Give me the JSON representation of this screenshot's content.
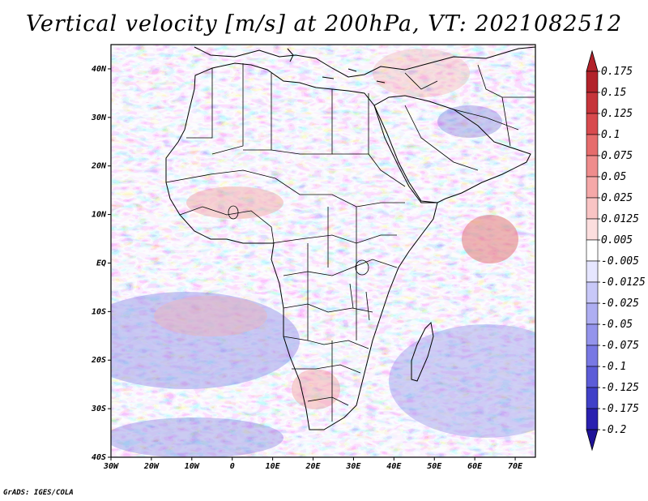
{
  "title": "Vertical velocity [m/s] at 200hPa, VT: 2021082512",
  "footer": "GrADS: IGES/COLA",
  "chart_data": {
    "type": "heatmap",
    "variable": "Vertical velocity",
    "units": "m/s",
    "level": "200hPa",
    "valid_time": "2021082512",
    "lon_range": [
      -30,
      75
    ],
    "lat_range": [
      -40,
      45
    ],
    "x_ticks": [
      {
        "value": -30,
        "label": "30W"
      },
      {
        "value": -20,
        "label": "20W"
      },
      {
        "value": -10,
        "label": "10W"
      },
      {
        "value": 0,
        "label": "0"
      },
      {
        "value": 10,
        "label": "10E"
      },
      {
        "value": 20,
        "label": "20E"
      },
      {
        "value": 30,
        "label": "30E"
      },
      {
        "value": 40,
        "label": "40E"
      },
      {
        "value": 50,
        "label": "50E"
      },
      {
        "value": 60,
        "label": "60E"
      },
      {
        "value": 70,
        "label": "70E"
      }
    ],
    "y_ticks": [
      {
        "value": 40,
        "label": "40N"
      },
      {
        "value": 30,
        "label": "30N"
      },
      {
        "value": 20,
        "label": "20N"
      },
      {
        "value": 10,
        "label": "10N"
      },
      {
        "value": 0,
        "label": "EQ"
      },
      {
        "value": -10,
        "label": "10S"
      },
      {
        "value": -20,
        "label": "20S"
      },
      {
        "value": -30,
        "label": "30S"
      },
      {
        "value": -40,
        "label": "40S"
      }
    ],
    "colorbar": {
      "labels": [
        "0.175",
        "0.15",
        "0.125",
        "0.1",
        "0.075",
        "0.05",
        "0.025",
        "0.0125",
        "0.005",
        "-0.005",
        "-0.0125",
        "-0.025",
        "-0.05",
        "-0.075",
        "-0.1",
        "-0.125",
        "-0.175",
        "-0.2"
      ],
      "colors": [
        "#b2222a",
        "#c6343a",
        "#d84a4e",
        "#e66c6c",
        "#ef8c8c",
        "#f5a8a8",
        "#f9c4c4",
        "#fcdede",
        "#ffffff",
        "#e6e6ff",
        "#c8c8f8",
        "#aeaef2",
        "#9494ec",
        "#7878e4",
        "#5c5cd8",
        "#4040c8",
        "#2a20b0",
        "#1e1298"
      ]
    }
  }
}
